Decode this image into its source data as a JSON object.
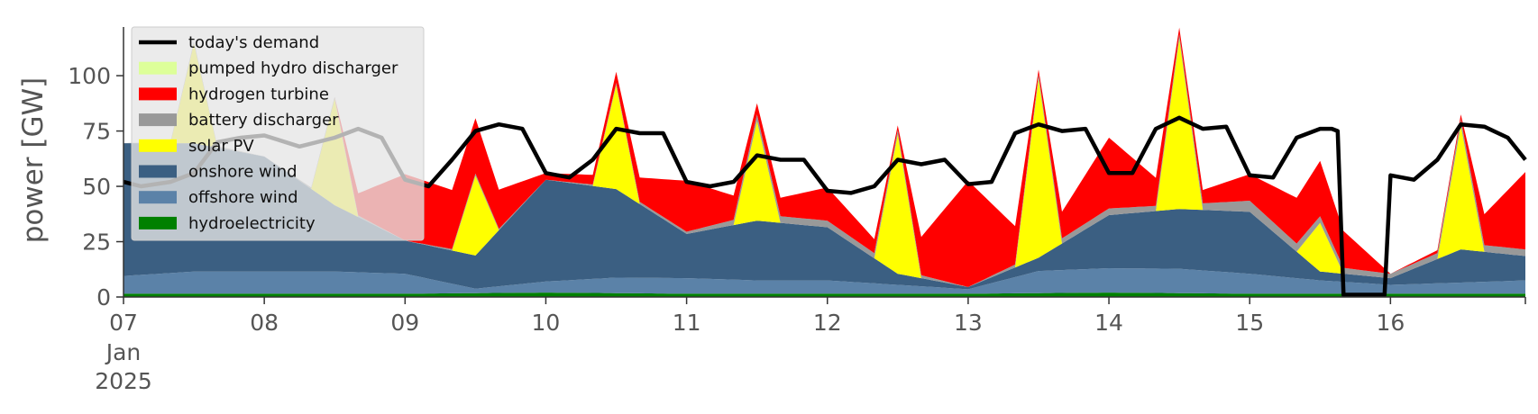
{
  "chart_data": {
    "type": "area",
    "ylabel": "power [GW]",
    "xlabel": "",
    "ylim": [
      0,
      122
    ],
    "yticks": [
      0,
      25,
      50,
      75,
      100
    ],
    "x_range_days": [
      "2025-01-07",
      "2025-01-16 23:00"
    ],
    "xticks": [
      {
        "date": "2025-01-07",
        "label": "07",
        "sub": [
          "Jan",
          "2025"
        ]
      },
      {
        "date": "2025-01-08",
        "label": "08"
      },
      {
        "date": "2025-01-09",
        "label": "09"
      },
      {
        "date": "2025-01-10",
        "label": "10"
      },
      {
        "date": "2025-01-11",
        "label": "11"
      },
      {
        "date": "2025-01-12",
        "label": "12"
      },
      {
        "date": "2025-01-13",
        "label": "13"
      },
      {
        "date": "2025-01-14",
        "label": "14"
      },
      {
        "date": "2025-01-15",
        "label": "15"
      },
      {
        "date": "2025-01-16",
        "label": "16"
      }
    ],
    "grid": false,
    "legend_position": "top-left",
    "stack_order": [
      "hydroelectricity",
      "offshore wind",
      "onshore wind",
      "solar PV",
      "battery discharger",
      "hydrogen turbine",
      "pumped hydro discharger"
    ],
    "series": [
      {
        "name": "hydroelectricity",
        "color": "#008000",
        "points": [
          [
            "2025-01-07",
            1.5
          ],
          [
            "2025-01-08",
            1.5
          ],
          [
            "2025-01-09",
            1.5
          ],
          [
            "2025-01-10",
            2
          ],
          [
            "2025-01-11",
            1.5
          ],
          [
            "2025-01-12",
            1.5
          ],
          [
            "2025-01-13",
            1.5
          ],
          [
            "2025-01-14",
            2
          ],
          [
            "2025-01-15",
            1.5
          ],
          [
            "2025-01-16",
            1.5
          ],
          [
            "2025-01-16 23:00",
            1.5
          ]
        ]
      },
      {
        "name": "offshore wind",
        "color": "#5b82a8",
        "points": [
          [
            "2025-01-07",
            8
          ],
          [
            "2025-01-07 12:00",
            10
          ],
          [
            "2025-01-08",
            10
          ],
          [
            "2025-01-08 12:00",
            10
          ],
          [
            "2025-01-09",
            9
          ],
          [
            "2025-01-09 12:00",
            2
          ],
          [
            "2025-01-10",
            5
          ],
          [
            "2025-01-10 12:00",
            7
          ],
          [
            "2025-01-11",
            7
          ],
          [
            "2025-01-11 12:00",
            6
          ],
          [
            "2025-01-12",
            6
          ],
          [
            "2025-01-12 12:00",
            4
          ],
          [
            "2025-01-13",
            2
          ],
          [
            "2025-01-13 12:00",
            10
          ],
          [
            "2025-01-14",
            11
          ],
          [
            "2025-01-14 12:00",
            11
          ],
          [
            "2025-01-15",
            9
          ],
          [
            "2025-01-15 12:00",
            6
          ],
          [
            "2025-01-16",
            4
          ],
          [
            "2025-01-16 12:00",
            5
          ],
          [
            "2025-01-16 23:00",
            6
          ]
        ]
      },
      {
        "name": "onshore wind",
        "color": "#3b5f82",
        "points": [
          [
            "2025-01-07",
            60
          ],
          [
            "2025-01-07 12:00",
            58
          ],
          [
            "2025-01-08",
            52
          ],
          [
            "2025-01-08 12:00",
            30
          ],
          [
            "2025-01-09",
            15
          ],
          [
            "2025-01-09 12:00",
            15
          ],
          [
            "2025-01-10",
            46
          ],
          [
            "2025-01-10 12:00",
            40
          ],
          [
            "2025-01-11",
            20
          ],
          [
            "2025-01-11 12:00",
            27
          ],
          [
            "2025-01-12",
            24
          ],
          [
            "2025-01-12 12:00",
            5
          ],
          [
            "2025-01-13",
            1
          ],
          [
            "2025-01-13 12:00",
            6
          ],
          [
            "2025-01-14",
            24
          ],
          [
            "2025-01-14 12:00",
            27
          ],
          [
            "2025-01-15",
            28
          ],
          [
            "2025-01-15 12:00",
            4
          ],
          [
            "2025-01-16",
            3
          ],
          [
            "2025-01-16 12:00",
            15
          ],
          [
            "2025-01-16 23:00",
            11
          ]
        ]
      },
      {
        "name": "solar PV",
        "color": "#ffff00",
        "points": [
          [
            "2025-01-07",
            0
          ],
          [
            "2025-01-07 08:00",
            0
          ],
          [
            "2025-01-07 12:00",
            45
          ],
          [
            "2025-01-07 16:00",
            0
          ],
          [
            "2025-01-08 08:00",
            0
          ],
          [
            "2025-01-08 12:00",
            48
          ],
          [
            "2025-01-08 16:00",
            0
          ],
          [
            "2025-01-09 08:00",
            0
          ],
          [
            "2025-01-09 12:00",
            36
          ],
          [
            "2025-01-09 16:00",
            0
          ],
          [
            "2025-01-10 08:00",
            0
          ],
          [
            "2025-01-10 12:00",
            47
          ],
          [
            "2025-01-10 16:00",
            0
          ],
          [
            "2025-01-11 08:00",
            0
          ],
          [
            "2025-01-11 12:00",
            45
          ],
          [
            "2025-01-11 16:00",
            0
          ],
          [
            "2025-01-12 08:00",
            0
          ],
          [
            "2025-01-12 12:00",
            63
          ],
          [
            "2025-01-12 16:00",
            0
          ],
          [
            "2025-01-13 08:00",
            0
          ],
          [
            "2025-01-13 12:00",
            81
          ],
          [
            "2025-01-13 16:00",
            0
          ],
          [
            "2025-01-14 08:00",
            0
          ],
          [
            "2025-01-14 12:00",
            77
          ],
          [
            "2025-01-14 16:00",
            0
          ],
          [
            "2025-01-15 08:00",
            0
          ],
          [
            "2025-01-15 12:00",
            22
          ],
          [
            "2025-01-15 16:00",
            0
          ],
          [
            "2025-01-16 08:00",
            0
          ],
          [
            "2025-01-16 12:00",
            56
          ],
          [
            "2025-01-16 16:00",
            0
          ],
          [
            "2025-01-16 23:00",
            0
          ]
        ]
      },
      {
        "name": "battery discharger",
        "color": "#999999",
        "points": [
          [
            "2025-01-07",
            0
          ],
          [
            "2025-01-07 12:00",
            1
          ],
          [
            "2025-01-08",
            0
          ],
          [
            "2025-01-08 12:00",
            1
          ],
          [
            "2025-01-09",
            0
          ],
          [
            "2025-01-09 12:00",
            1
          ],
          [
            "2025-01-10",
            0
          ],
          [
            "2025-01-10 12:00",
            1
          ],
          [
            "2025-01-11",
            1
          ],
          [
            "2025-01-11 12:00",
            3
          ],
          [
            "2025-01-12",
            3
          ],
          [
            "2025-01-12 12:00",
            2
          ],
          [
            "2025-01-13",
            0
          ],
          [
            "2025-01-13 12:00",
            2
          ],
          [
            "2025-01-14",
            3
          ],
          [
            "2025-01-14 12:00",
            2
          ],
          [
            "2025-01-15",
            5
          ],
          [
            "2025-01-15 12:00",
            3
          ],
          [
            "2025-01-16",
            2
          ],
          [
            "2025-01-16 12:00",
            3
          ],
          [
            "2025-01-16 23:00",
            3
          ]
        ]
      },
      {
        "name": "hydrogen turbine",
        "color": "#ff0000",
        "points": [
          [
            "2025-01-07",
            0
          ],
          [
            "2025-01-07 12:00",
            0
          ],
          [
            "2025-01-08",
            0
          ],
          [
            "2025-01-08 12:00",
            0
          ],
          [
            "2025-01-09",
            30
          ],
          [
            "2025-01-09 12:00",
            25
          ],
          [
            "2025-01-10",
            3
          ],
          [
            "2025-01-10 12:00",
            5
          ],
          [
            "2025-01-11",
            23
          ],
          [
            "2025-01-11 12:00",
            5
          ],
          [
            "2025-01-12",
            15
          ],
          [
            "2025-01-12 12:00",
            2
          ],
          [
            "2025-01-13",
            48
          ],
          [
            "2025-01-13 12:00",
            2
          ],
          [
            "2025-01-14",
            32
          ],
          [
            "2025-01-14 12:00",
            3
          ],
          [
            "2025-01-15",
            12
          ],
          [
            "2025-01-15 12:00",
            25
          ],
          [
            "2025-01-16",
            0
          ],
          [
            "2025-01-16 12:00",
            2
          ],
          [
            "2025-01-16 23:00",
            35
          ]
        ]
      },
      {
        "name": "pumped hydro discharger",
        "color": "#ddff99",
        "points": [
          [
            "2025-01-07",
            0
          ],
          [
            "2025-01-08",
            0
          ],
          [
            "2025-01-09",
            0
          ],
          [
            "2025-01-10",
            0
          ],
          [
            "2025-01-11",
            0
          ],
          [
            "2025-01-12",
            0
          ],
          [
            "2025-01-13",
            0
          ],
          [
            "2025-01-14",
            0
          ],
          [
            "2025-01-15",
            0
          ],
          [
            "2025-01-16",
            0
          ],
          [
            "2025-01-16 23:00",
            0
          ]
        ]
      }
    ],
    "demand": {
      "name": "today's demand",
      "color": "#000000",
      "points": [
        [
          "2025-01-07",
          52
        ],
        [
          "2025-01-07 03:00",
          50
        ],
        [
          "2025-01-07 08:00",
          52
        ],
        [
          "2025-01-07 12:00",
          56
        ],
        [
          "2025-01-07 16:00",
          70
        ],
        [
          "2025-01-07 20:00",
          72
        ],
        [
          "2025-01-08",
          73
        ],
        [
          "2025-01-08 06:00",
          68
        ],
        [
          "2025-01-08 12:00",
          72
        ],
        [
          "2025-01-08 16:00",
          76
        ],
        [
          "2025-01-08 20:00",
          72
        ],
        [
          "2025-01-09",
          53
        ],
        [
          "2025-01-09 04:00",
          50
        ],
        [
          "2025-01-09 08:00",
          62
        ],
        [
          "2025-01-09 12:00",
          75
        ],
        [
          "2025-01-09 16:00",
          78
        ],
        [
          "2025-01-09 20:00",
          76
        ],
        [
          "2025-01-10",
          56
        ],
        [
          "2025-01-10 04:00",
          54
        ],
        [
          "2025-01-10 08:00",
          62
        ],
        [
          "2025-01-10 12:00",
          76
        ],
        [
          "2025-01-10 16:00",
          74
        ],
        [
          "2025-01-10 20:00",
          74
        ],
        [
          "2025-01-11",
          52
        ],
        [
          "2025-01-11 04:00",
          50
        ],
        [
          "2025-01-11 08:00",
          52
        ],
        [
          "2025-01-11 12:00",
          64
        ],
        [
          "2025-01-11 16:00",
          62
        ],
        [
          "2025-01-11 20:00",
          62
        ],
        [
          "2025-01-12",
          48
        ],
        [
          "2025-01-12 04:00",
          47
        ],
        [
          "2025-01-12 08:00",
          50
        ],
        [
          "2025-01-12 12:00",
          62
        ],
        [
          "2025-01-12 16:00",
          60
        ],
        [
          "2025-01-12 20:00",
          62
        ],
        [
          "2025-01-13",
          51
        ],
        [
          "2025-01-13 04:00",
          52
        ],
        [
          "2025-01-13 08:00",
          74
        ],
        [
          "2025-01-13 12:00",
          78
        ],
        [
          "2025-01-13 16:00",
          75
        ],
        [
          "2025-01-13 20:00",
          76
        ],
        [
          "2025-01-14",
          56
        ],
        [
          "2025-01-14 04:00",
          56
        ],
        [
          "2025-01-14 08:00",
          76
        ],
        [
          "2025-01-14 12:00",
          81
        ],
        [
          "2025-01-14 16:00",
          76
        ],
        [
          "2025-01-14 20:00",
          77
        ],
        [
          "2025-01-15",
          55
        ],
        [
          "2025-01-15 04:00",
          54
        ],
        [
          "2025-01-15 08:00",
          72
        ],
        [
          "2025-01-15 12:00",
          76
        ],
        [
          "2025-01-15 14:00",
          76
        ],
        [
          "2025-01-15 15:00",
          75
        ],
        [
          "2025-01-15 16:00",
          1
        ],
        [
          "2025-01-15 23:00",
          1
        ],
        [
          "2025-01-16",
          55
        ],
        [
          "2025-01-16 04:00",
          53
        ],
        [
          "2025-01-16 08:00",
          62
        ],
        [
          "2025-01-16 12:00",
          78
        ],
        [
          "2025-01-16 16:00",
          77
        ],
        [
          "2025-01-16 20:00",
          72
        ],
        [
          "2025-01-16 23:00",
          62
        ]
      ]
    },
    "legend_order": [
      "today's demand",
      "pumped hydro discharger",
      "hydrogen turbine",
      "battery discharger",
      "solar PV",
      "onshore wind",
      "offshore wind",
      "hydroelectricity"
    ]
  }
}
